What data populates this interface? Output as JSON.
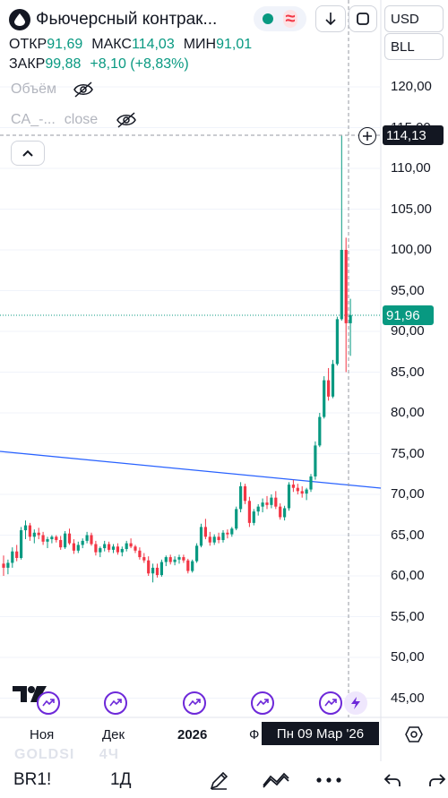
{
  "header": {
    "symbol_title": "Фьючерсный контрак...",
    "currency": "USD",
    "unit": "BLL",
    "approx_symbol": "≈"
  },
  "ohlc": {
    "open_label": "ОТКР",
    "open_value": "91,69",
    "high_label": "МАКС",
    "high_value": "114,03",
    "low_label": "МИН",
    "low_value": "91,01",
    "close_label": "ЗАКР",
    "close_value": "99,88",
    "change": "+8,10 (+8,83%)"
  },
  "indicators": [
    {
      "label": "Объём"
    },
    {
      "label": "CA_-...",
      "sub": "close"
    }
  ],
  "price_scale": {
    "labels": [
      "120,00",
      "115,00",
      "110,00",
      "105,00",
      "100,00",
      "95,00",
      "90,00",
      "85,00",
      "80,00",
      "75,00",
      "70,00",
      "65,00",
      "60,00",
      "55,00",
      "50,00",
      "45,00"
    ],
    "crosshair_price": "114,13",
    "last_price": "91,96"
  },
  "time_scale": {
    "labels": [
      "Ноя",
      "Дек",
      "2026",
      "Ф"
    ],
    "crosshair_date": "Пн 09 Мар '26"
  },
  "watermark": {
    "symbol": "GOLDSI",
    "interval": "4Ч"
  },
  "bottom_bar": {
    "symbol": "BR1!",
    "interval": "1Д"
  },
  "colors": {
    "up": "#089981",
    "down": "#f23645",
    "trendline": "#2962ff",
    "events": "#6d28d9",
    "crosshair_tag": "#131722"
  },
  "chart_data": {
    "type": "candlestick",
    "ylim": [
      43,
      122
    ],
    "trendline": {
      "start": [
        "left-edge",
        75.2
      ],
      "end": [
        "right-edge",
        70.4
      ]
    },
    "events_count": 6,
    "candles": [
      [
        61.5,
        62.5,
        60.0,
        61.0
      ],
      [
        61.0,
        62.0,
        60.2,
        61.6
      ],
      [
        61.6,
        63.5,
        61.0,
        63.0
      ],
      [
        63.0,
        63.8,
        61.8,
        62.2
      ],
      [
        62.2,
        66.0,
        62.0,
        65.6
      ],
      [
        65.6,
        66.8,
        64.5,
        66.2
      ],
      [
        66.2,
        66.5,
        64.3,
        64.8
      ],
      [
        64.8,
        65.7,
        64.0,
        65.3
      ],
      [
        65.3,
        65.9,
        64.5,
        65.0
      ],
      [
        65.0,
        65.4,
        63.8,
        64.2
      ],
      [
        64.2,
        64.8,
        63.4,
        64.5
      ],
      [
        64.5,
        65.0,
        64.0,
        64.8
      ],
      [
        64.8,
        65.0,
        64.1,
        64.4
      ],
      [
        64.4,
        64.9,
        63.2,
        63.5
      ],
      [
        63.5,
        65.5,
        63.3,
        65.2
      ],
      [
        65.2,
        65.8,
        63.8,
        64.0
      ],
      [
        64.0,
        64.5,
        62.7,
        63.1
      ],
      [
        63.1,
        64.2,
        62.8,
        63.8
      ],
      [
        63.8,
        64.6,
        63.4,
        64.3
      ],
      [
        64.3,
        65.4,
        64.0,
        65.0
      ],
      [
        65.0,
        65.3,
        63.7,
        63.9
      ],
      [
        63.9,
        64.3,
        62.5,
        62.9
      ],
      [
        62.9,
        63.6,
        62.3,
        63.4
      ],
      [
        63.4,
        64.3,
        63.0,
        63.9
      ],
      [
        63.9,
        64.2,
        62.9,
        63.2
      ],
      [
        63.2,
        63.9,
        62.8,
        63.6
      ],
      [
        63.6,
        64.0,
        62.6,
        62.9
      ],
      [
        62.9,
        63.6,
        62.4,
        63.3
      ],
      [
        63.3,
        64.3,
        63.0,
        64.0
      ],
      [
        64.0,
        64.6,
        63.4,
        63.6
      ],
      [
        63.6,
        63.8,
        62.8,
        63.1
      ],
      [
        63.1,
        63.5,
        62.0,
        62.3
      ],
      [
        62.3,
        62.8,
        61.6,
        61.9
      ],
      [
        61.9,
        62.4,
        60.0,
        60.3
      ],
      [
        60.3,
        61.5,
        59.2,
        61.0
      ],
      [
        61.0,
        61.5,
        59.8,
        60.1
      ],
      [
        60.1,
        62.0,
        59.9,
        61.7
      ],
      [
        61.7,
        62.5,
        61.2,
        62.3
      ],
      [
        62.3,
        62.6,
        61.4,
        61.7
      ],
      [
        61.7,
        62.4,
        61.3,
        62.0
      ],
      [
        62.0,
        62.6,
        61.5,
        62.3
      ],
      [
        62.3,
        62.6,
        61.6,
        61.9
      ],
      [
        61.9,
        62.1,
        60.3,
        60.6
      ],
      [
        60.6,
        62.0,
        60.4,
        61.8
      ],
      [
        61.8,
        64.0,
        61.6,
        63.7
      ],
      [
        63.7,
        66.4,
        63.5,
        66.0
      ],
      [
        66.0,
        67.0,
        64.5,
        64.8
      ],
      [
        64.8,
        65.4,
        63.7,
        64.1
      ],
      [
        64.1,
        65.1,
        63.8,
        64.8
      ],
      [
        64.8,
        65.3,
        64.0,
        64.4
      ],
      [
        64.4,
        65.6,
        64.1,
        65.3
      ],
      [
        65.3,
        65.7,
        64.6,
        65.1
      ],
      [
        65.1,
        66.0,
        64.8,
        65.8
      ],
      [
        65.8,
        68.5,
        65.6,
        68.2
      ],
      [
        68.2,
        71.5,
        67.8,
        71.0
      ],
      [
        71.0,
        71.3,
        68.8,
        69.2
      ],
      [
        69.2,
        69.7,
        66.0,
        66.5
      ],
      [
        66.5,
        68.2,
        66.2,
        67.9
      ],
      [
        67.9,
        68.8,
        67.4,
        68.5
      ],
      [
        68.5,
        69.5,
        67.8,
        69.0
      ],
      [
        69.0,
        69.8,
        68.2,
        68.7
      ],
      [
        68.7,
        70.0,
        68.3,
        69.6
      ],
      [
        69.6,
        70.4,
        68.2,
        68.5
      ],
      [
        68.5,
        68.9,
        66.9,
        67.2
      ],
      [
        67.2,
        68.6,
        66.8,
        68.3
      ],
      [
        68.3,
        71.5,
        68.0,
        71.2
      ],
      [
        71.2,
        71.8,
        70.3,
        70.8
      ],
      [
        70.8,
        71.3,
        70.0,
        70.4
      ],
      [
        70.4,
        71.0,
        69.6,
        70.1
      ],
      [
        70.1,
        70.8,
        69.3,
        70.6
      ],
      [
        70.6,
        72.5,
        70.3,
        72.2
      ],
      [
        72.2,
        76.5,
        71.8,
        76.0
      ],
      [
        76.0,
        80.0,
        75.8,
        79.5
      ],
      [
        79.5,
        84.5,
        79.3,
        84.0
      ],
      [
        84.0,
        85.5,
        81.5,
        82.0
      ],
      [
        82.0,
        86.5,
        81.8,
        86.0
      ],
      [
        86.0,
        91.8,
        85.8,
        91.5
      ],
      [
        91.5,
        114.0,
        91.3,
        100.0
      ],
      [
        100.0,
        101.5,
        85.0,
        91.0
      ],
      [
        91.0,
        94.0,
        87.0,
        92.0
      ]
    ]
  }
}
